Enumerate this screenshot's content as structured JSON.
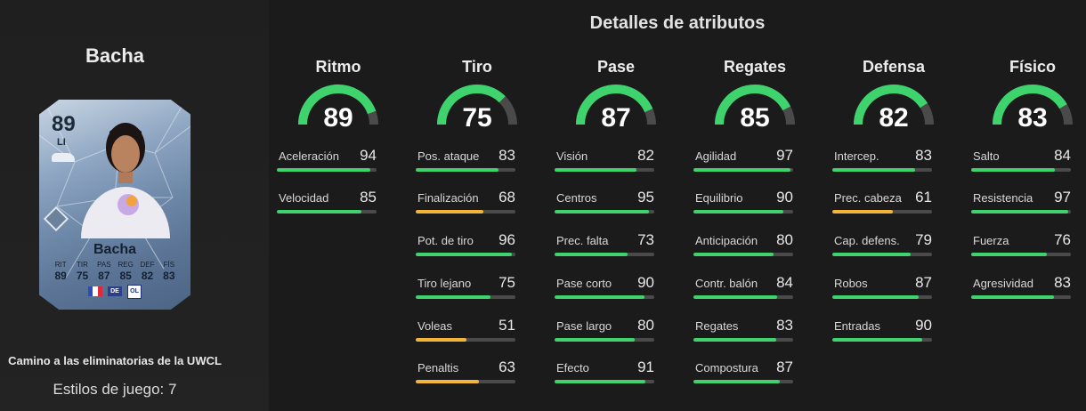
{
  "colors": {
    "high": "#3ed36c",
    "mid": "#f2b538",
    "track": "#4a4a4a"
  },
  "player": {
    "name": "Bacha",
    "card": {
      "rating": "89",
      "position": "LI",
      "name": "Bacha",
      "stats": [
        {
          "label": "RIT",
          "value": "89"
        },
        {
          "label": "TIR",
          "value": "75"
        },
        {
          "label": "PAS",
          "value": "87"
        },
        {
          "label": "REG",
          "value": "85"
        },
        {
          "label": "DEF",
          "value": "82"
        },
        {
          "label": "FÍS",
          "value": "83"
        }
      ],
      "league_badge": "DE",
      "club_badge": "OL"
    },
    "promo": "Camino a las eliminatorias de la UWCL",
    "playstyles": "Estilos de juego: 7"
  },
  "attributes": {
    "title": "Detalles de atributos",
    "categories": [
      {
        "name": "Ritmo",
        "rating": 89,
        "rating_label": "89",
        "stats": [
          {
            "name": "Aceleración",
            "value": 94,
            "label": "94"
          },
          {
            "name": "Velocidad",
            "value": 85,
            "label": "85"
          }
        ]
      },
      {
        "name": "Tiro",
        "rating": 75,
        "rating_label": "75",
        "stats": [
          {
            "name": "Pos. ataque",
            "value": 83,
            "label": "83"
          },
          {
            "name": "Finalización",
            "value": 68,
            "label": "68"
          },
          {
            "name": "Pot. de tiro",
            "value": 96,
            "label": "96"
          },
          {
            "name": "Tiro lejano",
            "value": 75,
            "label": "75"
          },
          {
            "name": "Voleas",
            "value": 51,
            "label": "51"
          },
          {
            "name": "Penaltis",
            "value": 63,
            "label": "63"
          }
        ]
      },
      {
        "name": "Pase",
        "rating": 87,
        "rating_label": "87",
        "stats": [
          {
            "name": "Visión",
            "value": 82,
            "label": "82"
          },
          {
            "name": "Centros",
            "value": 95,
            "label": "95"
          },
          {
            "name": "Prec. falta",
            "value": 73,
            "label": "73"
          },
          {
            "name": "Pase corto",
            "value": 90,
            "label": "90"
          },
          {
            "name": "Pase largo",
            "value": 80,
            "label": "80"
          },
          {
            "name": "Efecto",
            "value": 91,
            "label": "91"
          }
        ]
      },
      {
        "name": "Regates",
        "rating": 85,
        "rating_label": "85",
        "stats": [
          {
            "name": "Agilidad",
            "value": 97,
            "label": "97"
          },
          {
            "name": "Equilibrio",
            "value": 90,
            "label": "90"
          },
          {
            "name": "Anticipación",
            "value": 80,
            "label": "80"
          },
          {
            "name": "Contr. balón",
            "value": 84,
            "label": "84"
          },
          {
            "name": "Regates",
            "value": 83,
            "label": "83"
          },
          {
            "name": "Compostura",
            "value": 87,
            "label": "87"
          }
        ]
      },
      {
        "name": "Defensa",
        "rating": 82,
        "rating_label": "82",
        "stats": [
          {
            "name": "Intercep.",
            "value": 83,
            "label": "83"
          },
          {
            "name": "Prec. cabeza",
            "value": 61,
            "label": "61"
          },
          {
            "name": "Cap. defens.",
            "value": 79,
            "label": "79"
          },
          {
            "name": "Robos",
            "value": 87,
            "label": "87"
          },
          {
            "name": "Entradas",
            "value": 90,
            "label": "90"
          }
        ]
      },
      {
        "name": "Físico",
        "rating": 83,
        "rating_label": "83",
        "stats": [
          {
            "name": "Salto",
            "value": 84,
            "label": "84"
          },
          {
            "name": "Resistencia",
            "value": 97,
            "label": "97"
          },
          {
            "name": "Fuerza",
            "value": 76,
            "label": "76"
          },
          {
            "name": "Agresividad",
            "value": 83,
            "label": "83"
          }
        ]
      }
    ]
  }
}
